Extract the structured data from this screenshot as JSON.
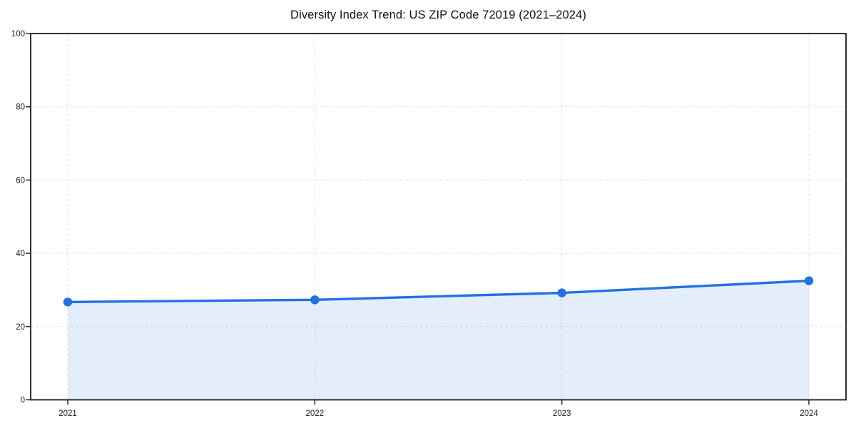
{
  "chart_data": {
    "type": "area",
    "title": "Diversity Index Trend: US ZIP Code 72019 (2021–2024)",
    "x": [
      "2021",
      "2022",
      "2023",
      "2024"
    ],
    "values": [
      26.7,
      27.3,
      29.2,
      32.5
    ],
    "xlabel": "",
    "ylabel": "",
    "ylim": [
      0,
      100
    ],
    "yticks": [
      0,
      20,
      40,
      60,
      80,
      100
    ],
    "grid": true,
    "grid_style": "dashed",
    "legend": "none",
    "marker": "circle",
    "colors": {
      "line": "#2172e2",
      "marker": "#2172e2",
      "fill": "#2172e2",
      "fill_opacity": 0.12,
      "grid": "#e0e0e0",
      "spine": "#1a1a1a",
      "text": "#1c1c1c",
      "background": "#ffffff"
    }
  }
}
